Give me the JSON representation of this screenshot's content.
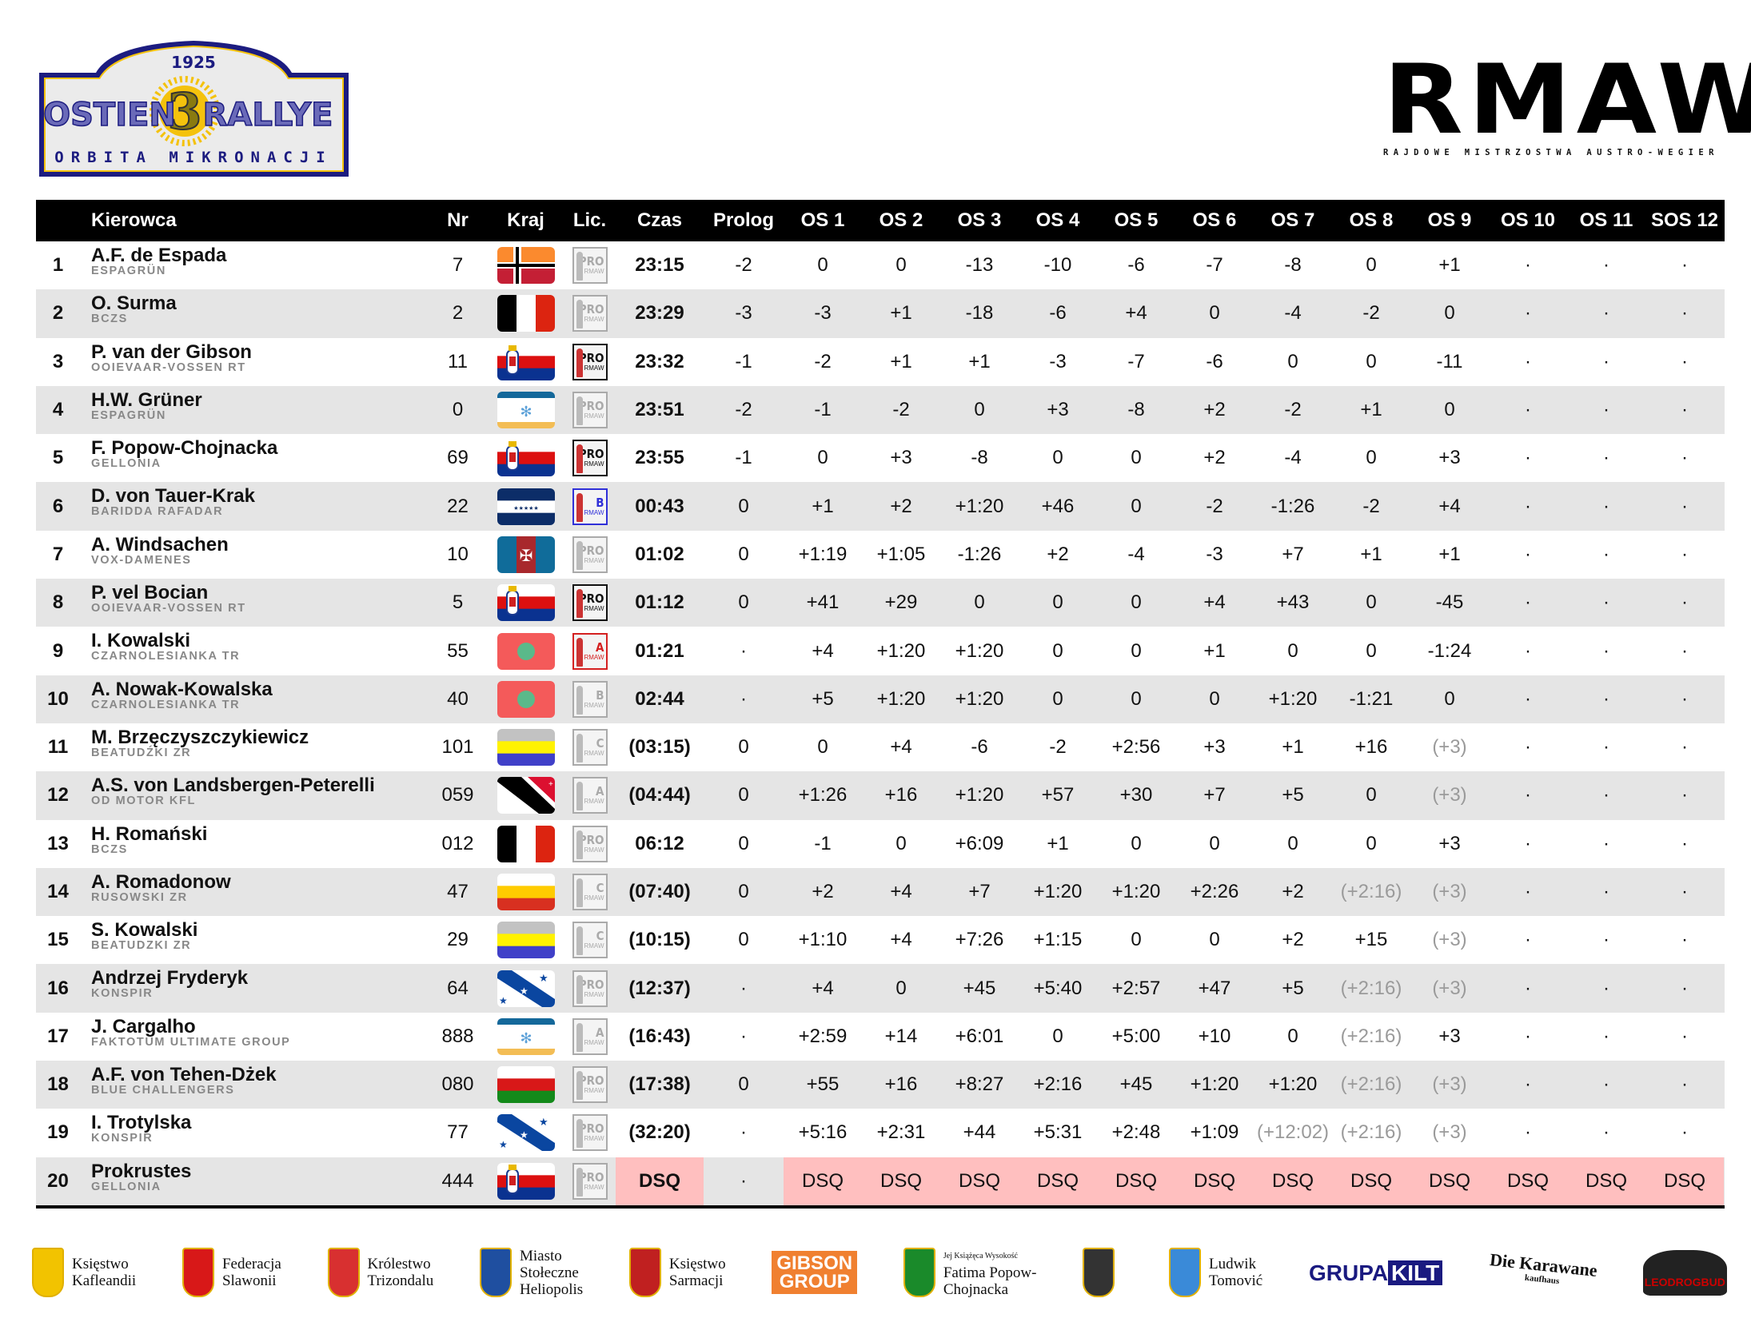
{
  "event_logo": {
    "year": "1925",
    "title_left": "OSTIEN",
    "number": "3",
    "title_right": "RALLYE",
    "subtitle": "ORBITA MIKRONACJI",
    "colors": {
      "navy": "#1c1c80",
      "gold": "#f4c20d",
      "letters": "#6a6ab8"
    }
  },
  "series_logo": {
    "letters": "RMAW",
    "subtitle": "RAJDOWE MISTRZOSTWA AUSTRO-WEGIER"
  },
  "table": {
    "headers": {
      "rank": "",
      "driver": "Kierowca",
      "nr": "Nr",
      "kraj": "Kraj",
      "lic": "Lic.",
      "czas": "Czas",
      "prolog": "Prolog",
      "stages": [
        "OS 1",
        "OS 2",
        "OS 3",
        "OS 4",
        "OS 5",
        "OS 6",
        "OS 7",
        "OS 8",
        "OS 9",
        "OS 10",
        "OS 11",
        "SOS 12"
      ]
    },
    "rows": [
      {
        "pos": "1",
        "name": "A.F. de Espada",
        "team": "ESPAGRÜN",
        "nr": "7",
        "flag": "espagrun",
        "lic": {
          "cls": "PRO",
          "org": "RMAW",
          "style": "gray"
        },
        "czas": "23:15",
        "prolog": "-2",
        "stages": [
          "0",
          "0",
          "-13",
          "-10",
          "-6",
          "-7",
          "-8",
          "0",
          "+1",
          "·",
          "·",
          "·"
        ]
      },
      {
        "pos": "2",
        "name": "O. Surma",
        "team": "BCZS",
        "nr": "2",
        "flag": "bczs",
        "lic": {
          "cls": "PRO",
          "org": "RMAW",
          "style": "gray"
        },
        "czas": "23:29",
        "prolog": "-3",
        "stages": [
          "-3",
          "+1",
          "-18",
          "-6",
          "+4",
          "0",
          "-4",
          "-2",
          "0",
          "·",
          "·",
          "·"
        ]
      },
      {
        "pos": "3",
        "name": "P. van der Gibson",
        "team": "OOIEVAAR-VOSSEN RT",
        "nr": "11",
        "flag": "gellonia",
        "lic": {
          "cls": "PRO",
          "org": "RMAW",
          "style": "dark"
        },
        "czas": "23:32",
        "prolog": "-1",
        "stages": [
          "-2",
          "+1",
          "+1",
          "-3",
          "-7",
          "-6",
          "0",
          "0",
          "-11",
          "·",
          "·",
          "·"
        ]
      },
      {
        "pos": "4",
        "name": "H.W. Grüner",
        "team": "ESPAGRÜN",
        "nr": "0",
        "flag": "flower",
        "lic": {
          "cls": "PRO",
          "org": "RMAW",
          "style": "gray"
        },
        "czas": "23:51",
        "prolog": "-2",
        "stages": [
          "-1",
          "-2",
          "0",
          "+3",
          "-8",
          "+2",
          "-2",
          "+1",
          "0",
          "·",
          "·",
          "·"
        ]
      },
      {
        "pos": "5",
        "name": "F. Popow-Chojnacka",
        "team": "GELLONIA",
        "nr": "69",
        "flag": "gellonia",
        "lic": {
          "cls": "PRO",
          "org": "RMAW",
          "style": "dark"
        },
        "czas": "23:55",
        "prolog": "-1",
        "stages": [
          "0",
          "+3",
          "-8",
          "0",
          "0",
          "+2",
          "-4",
          "0",
          "+3",
          "·",
          "·",
          "·"
        ]
      },
      {
        "pos": "6",
        "name": "D. von Tauer-Krak",
        "team": "BARIDDA RAFADAR",
        "nr": "22",
        "flag": "baridda",
        "lic": {
          "cls": "B",
          "org": "RMAW",
          "style": "blue"
        },
        "czas": "00:43",
        "prolog": "0",
        "stages": [
          "+1",
          "+2",
          "+1:20",
          "+46",
          "0",
          "-2",
          "-1:26",
          "-2",
          "+4",
          "·",
          "·",
          "·"
        ]
      },
      {
        "pos": "7",
        "name": "A. Windsachen",
        "team": "VOX-DAMENES",
        "nr": "10",
        "flag": "vox",
        "lic": {
          "cls": "PRO",
          "org": "RMAW",
          "style": "gray"
        },
        "czas": "01:02",
        "prolog": "0",
        "stages": [
          "+1:19",
          "+1:05",
          "-1:26",
          "+2",
          "-4",
          "-3",
          "+7",
          "+1",
          "+1",
          "·",
          "·",
          "·"
        ]
      },
      {
        "pos": "8",
        "name": "P. vel Bocian",
        "team": "OOIEVAAR-VOSSEN RT",
        "nr": "5",
        "flag": "gellonia",
        "lic": {
          "cls": "PRO",
          "org": "RMAW",
          "style": "dark"
        },
        "czas": "01:12",
        "prolog": "0",
        "stages": [
          "+41",
          "+29",
          "0",
          "0",
          "0",
          "+4",
          "+43",
          "0",
          "-45",
          "·",
          "·",
          "·"
        ]
      },
      {
        "pos": "9",
        "name": "I. Kowalski",
        "team": "CZARNOLESIANKA TR",
        "nr": "55",
        "flag": "czarno",
        "lic": {
          "cls": "A",
          "org": "RMAW",
          "style": "red"
        },
        "czas": "01:21",
        "prolog": "·",
        "stages": [
          "+4",
          "+1:20",
          "+1:20",
          "0",
          "0",
          "+1",
          "0",
          "0",
          "-1:24",
          "·",
          "·",
          "·"
        ]
      },
      {
        "pos": "10",
        "name": "A. Nowak-Kowalska",
        "team": "CZARNOLESIANKA TR",
        "nr": "40",
        "flag": "czarno",
        "lic": {
          "cls": "B",
          "org": "RMAW",
          "style": "gray"
        },
        "czas": "02:44",
        "prolog": "·",
        "stages": [
          "+5",
          "+1:20",
          "+1:20",
          "0",
          "0",
          "0",
          "+1:20",
          "-1:21",
          "0",
          "·",
          "·",
          "·"
        ]
      },
      {
        "pos": "11",
        "name": "M. Brzęczyszczykiewicz",
        "team": "BEATUDŹKI ZR",
        "nr": "101",
        "flag": "beatudzki",
        "lic": {
          "cls": "C",
          "org": "RMAW",
          "style": "gray"
        },
        "czas": "(03:15)",
        "prolog": "0",
        "stages": [
          "0",
          "+4",
          "-6",
          "-2",
          "+2:56",
          "+3",
          "+1",
          "+16",
          "(+3)",
          "·",
          "·",
          "·"
        ]
      },
      {
        "pos": "12",
        "name": "A.S. von Landsbergen-Peterelli",
        "team": "OD MOTOR KFL",
        "nr": "059",
        "flag": "odmotor",
        "lic": {
          "cls": "A",
          "org": "RMAW",
          "style": "gray"
        },
        "czas": "(04:44)",
        "prolog": "0",
        "stages": [
          "+1:26",
          "+16",
          "+1:20",
          "+57",
          "+30",
          "+7",
          "+5",
          "0",
          "(+3)",
          "·",
          "·",
          "·"
        ]
      },
      {
        "pos": "13",
        "name": "H. Romański",
        "team": "BCZS",
        "nr": "012",
        "flag": "bczs",
        "lic": {
          "cls": "PRO",
          "org": "RMAW",
          "style": "gray"
        },
        "czas": "06:12",
        "prolog": "0",
        "stages": [
          "-1",
          "0",
          "+6:09",
          "+1",
          "0",
          "0",
          "0",
          "0",
          "+3",
          "·",
          "·",
          "·"
        ]
      },
      {
        "pos": "14",
        "name": "A. Romadonow",
        "team": "RUSOWSKI ZR",
        "nr": "47",
        "flag": "rusowski",
        "lic": {
          "cls": "C",
          "org": "RMAW",
          "style": "gray"
        },
        "czas": "(07:40)",
        "prolog": "0",
        "stages": [
          "+2",
          "+4",
          "+7",
          "+1:20",
          "+1:20",
          "+2:26",
          "+2",
          "(+2:16)",
          "(+3)",
          "·",
          "·",
          "·"
        ]
      },
      {
        "pos": "15",
        "name": "S. Kowalski",
        "team": "BEATUDZKI ZR",
        "nr": "29",
        "flag": "beatudzki",
        "lic": {
          "cls": "C",
          "org": "RMAW",
          "style": "gray"
        },
        "czas": "(10:15)",
        "prolog": "0",
        "stages": [
          "+1:10",
          "+4",
          "+7:26",
          "+1:15",
          "0",
          "0",
          "+2",
          "+15",
          "(+3)",
          "·",
          "·",
          "·"
        ]
      },
      {
        "pos": "16",
        "name": "Andrzej Fryderyk",
        "team": "KONSPIR",
        "nr": "64",
        "flag": "konspir",
        "lic": {
          "cls": "PRO",
          "org": "RMAW",
          "style": "gray"
        },
        "czas": "(12:37)",
        "prolog": "·",
        "stages": [
          "+4",
          "0",
          "+45",
          "+5:40",
          "+2:57",
          "+47",
          "+5",
          "(+2:16)",
          "(+3)",
          "·",
          "·",
          "·"
        ]
      },
      {
        "pos": "17",
        "name": "J. Cargalho",
        "team": "FAKTOTUM ULTIMATE GROUP",
        "nr": "888",
        "flag": "flower",
        "lic": {
          "cls": "A",
          "org": "RMAW",
          "style": "gray"
        },
        "czas": "(16:43)",
        "prolog": "·",
        "stages": [
          "+2:59",
          "+14",
          "+6:01",
          "0",
          "+5:00",
          "+10",
          "0",
          "(+2:16)",
          "+3",
          "·",
          "·",
          "·"
        ]
      },
      {
        "pos": "18",
        "name": "A.F. von Tehen-Dżek",
        "team": "BLUE CHALLENGERS",
        "nr": "080",
        "flag": "blue_ch",
        "lic": {
          "cls": "PRO",
          "org": "RMAW",
          "style": "gray"
        },
        "czas": "(17:38)",
        "prolog": "0",
        "stages": [
          "+55",
          "+16",
          "+8:27",
          "+2:16",
          "+45",
          "+1:20",
          "+1:20",
          "(+2:16)",
          "(+3)",
          "·",
          "·",
          "·"
        ]
      },
      {
        "pos": "19",
        "name": "I. Trotylska",
        "team": "KONSPIR",
        "nr": "77",
        "flag": "konspir",
        "lic": {
          "cls": "PRO",
          "org": "RMAW",
          "style": "gray"
        },
        "czas": "(32:20)",
        "prolog": "·",
        "stages": [
          "+5:16",
          "+2:31",
          "+44",
          "+5:31",
          "+2:48",
          "+1:09",
          "(+12:02)",
          "(+2:16)",
          "(+3)",
          "·",
          "·",
          "·"
        ]
      },
      {
        "pos": "20",
        "name": "Prokrustes",
        "team": "GELLONIA",
        "nr": "444",
        "flag": "gellonia",
        "lic": {
          "cls": "PRO",
          "org": "RMAW",
          "style": "gray"
        },
        "czas": "DSQ",
        "prolog": "·",
        "stages": [
          "DSQ",
          "DSQ",
          "DSQ",
          "DSQ",
          "DSQ",
          "DSQ",
          "DSQ",
          "DSQ",
          "DSQ",
          "DSQ",
          "DSQ",
          "DSQ"
        ],
        "disqualified": true
      }
    ],
    "colors": {
      "header_bg": "#000000",
      "alt_row": "#e5e5e5",
      "dsq_bg": "#ffbfbf",
      "muted_text": "#9a9a9a"
    }
  },
  "sponsors": [
    {
      "kind": "crest",
      "lines": [
        "Księstwo",
        "Kafleandii"
      ],
      "color": "#f2c300"
    },
    {
      "kind": "crest",
      "lines": [
        "Federacja",
        "Slawonii"
      ],
      "color": "#d81818"
    },
    {
      "kind": "crest",
      "lines": [
        "Królestwo",
        "Trizondalu"
      ],
      "color": "#d83030"
    },
    {
      "kind": "crest",
      "lines": [
        "Miasto",
        "Stołeczne",
        "Heliopolis"
      ],
      "color": "#1f4fa0"
    },
    {
      "kind": "crest",
      "lines": [
        "Księstwo",
        "Sarmacji"
      ],
      "color": "#c02020"
    },
    {
      "kind": "gibson",
      "lines": [
        "GIBSON",
        "GROUP"
      ]
    },
    {
      "kind": "crest",
      "lines": [
        "Jej Książęca Wysokość",
        "Fatima Popow-",
        "Chojnacka"
      ],
      "color": "#1a8a2a"
    },
    {
      "kind": "crest",
      "lines": [],
      "color": "#333333"
    },
    {
      "kind": "crest",
      "lines": [
        "Ludwik",
        "Tomović"
      ],
      "color": "#3a8ad8"
    },
    {
      "kind": "kilt",
      "lines": [
        "GRUPA",
        "KILT"
      ]
    },
    {
      "kind": "karawane",
      "lines": [
        "Die Karawane",
        "kaufhaus"
      ]
    },
    {
      "kind": "leo",
      "lines": [
        "LEODROGBUD"
      ]
    }
  ]
}
